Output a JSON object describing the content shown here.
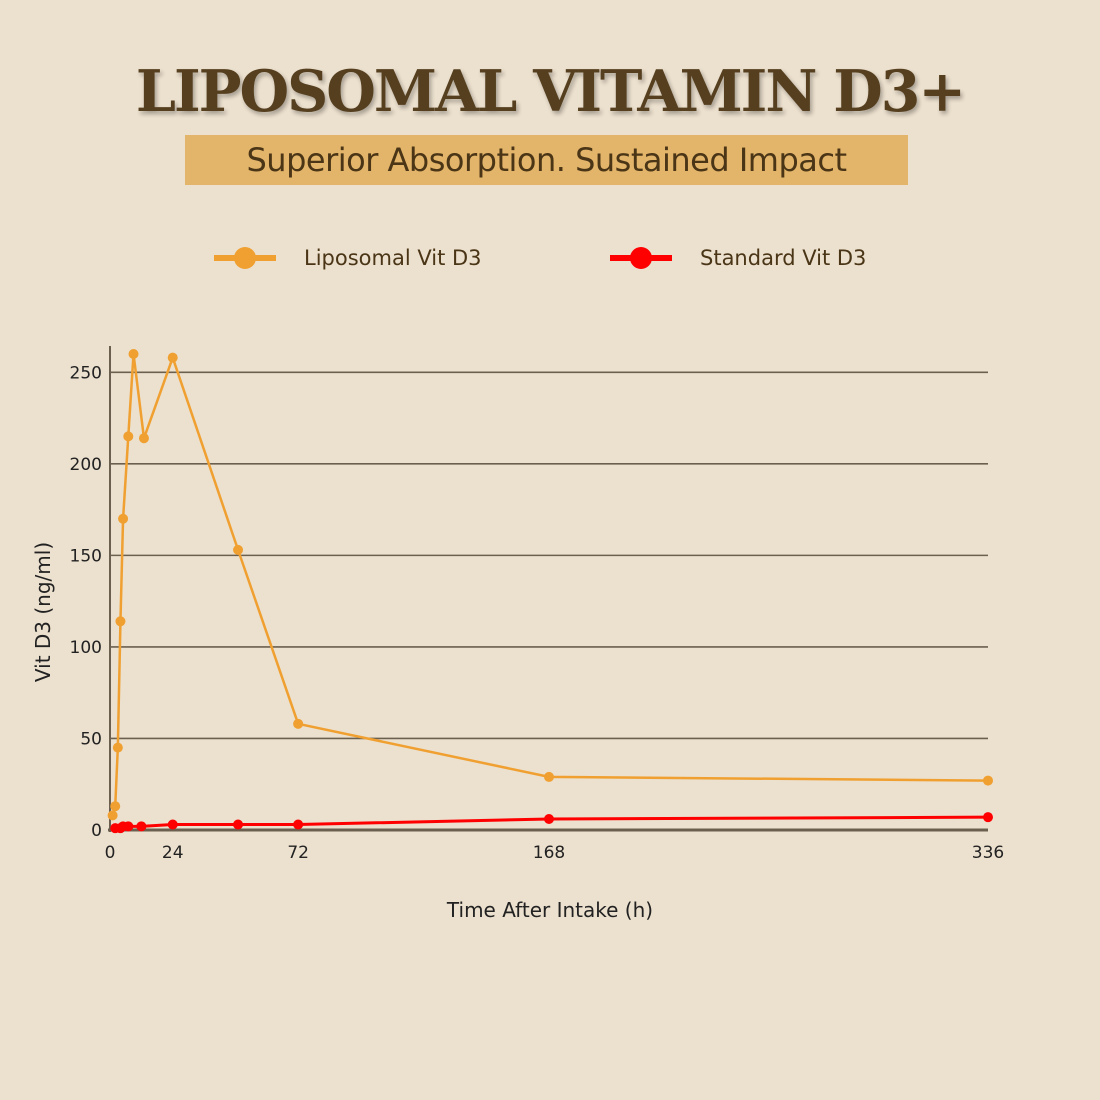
{
  "header": {
    "title": "LIPOSOMAL VITAMIN D3+",
    "subtitle": "Superior Absorption. Sustained Impact"
  },
  "colors": {
    "background": "#ece0ce",
    "title": "#553f1f",
    "subtitle_bg": "#e3b56a",
    "liposomal": "#f0a030",
    "standard": "#ff0000",
    "grid": "#6b6050",
    "axis": "#6b6050"
  },
  "legend": {
    "liposomal_label": "Liposomal Vit D3",
    "standard_label": "Standard Vit D3"
  },
  "chart_data": {
    "type": "line",
    "title": "LIPOSOMAL VITAMIN D3+",
    "subtitle": "Superior Absorption. Sustained Impact",
    "xlabel": "Time After Intake (h)",
    "ylabel": "Vit D3 (ng/ml)",
    "xlim": [
      0,
      336
    ],
    "ylim": [
      0,
      260
    ],
    "xticks": [
      0,
      24,
      72,
      168,
      336
    ],
    "yticks": [
      0,
      50,
      100,
      150,
      200,
      250
    ],
    "grid": true,
    "legend_position": "top",
    "series": [
      {
        "name": "Liposomal Vit D3",
        "color": "#f0a030",
        "x": [
          1,
          2,
          3,
          4,
          5,
          7,
          9,
          13,
          24,
          49,
          72,
          168,
          336
        ],
        "y": [
          8,
          13,
          45,
          114,
          170,
          215,
          260,
          214,
          258,
          153,
          58,
          29,
          27
        ]
      },
      {
        "name": "Standard Vit D3",
        "color": "#ff0000",
        "x": [
          2,
          4,
          5,
          7,
          12,
          24,
          49,
          72,
          168,
          336
        ],
        "y": [
          1,
          1,
          2,
          2,
          2,
          3,
          3,
          3,
          6,
          7
        ]
      }
    ]
  }
}
